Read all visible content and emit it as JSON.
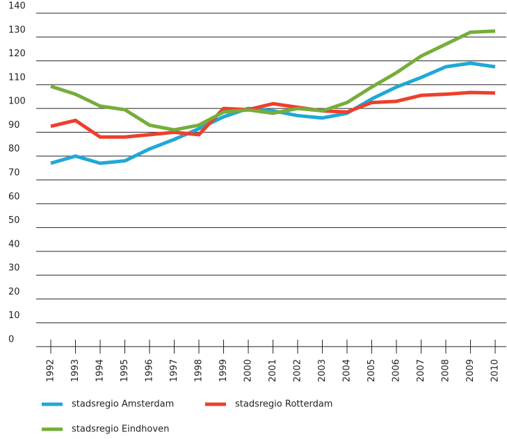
{
  "chart_data": {
    "type": "line",
    "categories": [
      "1992",
      "1993",
      "1994",
      "1995",
      "1996",
      "1997",
      "1998",
      "1999",
      "2000",
      "2001",
      "2002",
      "2003",
      "2004",
      "2005",
      "2006",
      "2007",
      "2008",
      "2009",
      "2010"
    ],
    "series": [
      {
        "name": "stadsregio Amsterdam",
        "color": "#1fa8d7",
        "values": [
          77,
          80,
          77,
          78,
          83,
          87,
          91.5,
          96.5,
          100,
          99,
          97,
          96,
          98,
          104,
          109,
          113,
          117.5,
          119,
          117.5
        ]
      },
      {
        "name": "stadsregio Rotterdam",
        "color": "#ee3f2c",
        "values": [
          92.5,
          95,
          88,
          88,
          89,
          90,
          89,
          100,
          99.5,
          102,
          100.5,
          99,
          98.5,
          102.5,
          103,
          105.5,
          106,
          106.7,
          106.5
        ]
      },
      {
        "name": "stadsregio Eindhoven",
        "color": "#76ad3b",
        "values": [
          109.3,
          106,
          101,
          99.5,
          93,
          91,
          93,
          98.5,
          99.4,
          98,
          100,
          99,
          102.5,
          109,
          115,
          122,
          127,
          132,
          132.5
        ]
      }
    ],
    "ylim": [
      0,
      140
    ],
    "yticks": [
      0,
      10,
      20,
      30,
      40,
      50,
      60,
      70,
      80,
      90,
      100,
      110,
      120,
      130,
      140
    ],
    "grid": true
  }
}
